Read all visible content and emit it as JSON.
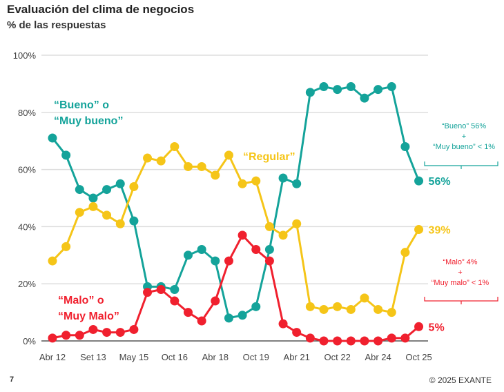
{
  "chart_data": {
    "type": "line",
    "title": "Evaluación del clima de negocios",
    "subtitle": "% de las respuestas",
    "ylim": [
      0,
      100
    ],
    "yticks": [
      "0%",
      "20%",
      "40%",
      "60%",
      "80%",
      "100%"
    ],
    "grid": true,
    "xtick_labels": [
      "Abr 12",
      "Set 13",
      "May 15",
      "Oct 16",
      "Abr 18",
      "Oct 19",
      "Abr 21",
      "Oct 22",
      "Abr 24",
      "Oct 25"
    ],
    "xtick_every": 3,
    "series": [
      {
        "name": "“Bueno” o “Muy bueno”",
        "color": "#14A39A",
        "end_label": "56%",
        "values": [
          71,
          65,
          53,
          50,
          53,
          55,
          42,
          19,
          19,
          18,
          30,
          32,
          28,
          8,
          9,
          12,
          32,
          57,
          55,
          87,
          89,
          88,
          89,
          85,
          88,
          89,
          68,
          56
        ]
      },
      {
        "name": "“Regular”",
        "color": "#F5C518",
        "end_label": "39%",
        "values": [
          28,
          33,
          45,
          47,
          44,
          41,
          54,
          64,
          63,
          68,
          61,
          61,
          58,
          65,
          55,
          56,
          40,
          37,
          41,
          12,
          11,
          12,
          11,
          15,
          11,
          10,
          31,
          39
        ]
      },
      {
        "name": "“Malo” o “Muy Malo”",
        "color": "#F0202E",
        "end_label": "5%",
        "values": [
          1,
          2,
          2,
          4,
          3,
          3,
          4,
          17,
          18,
          14,
          10,
          7,
          14,
          28,
          37,
          32,
          28,
          6,
          3,
          1,
          0,
          0,
          0,
          0,
          0,
          1,
          1,
          5
        ]
      }
    ],
    "annotations": {
      "bueno": [
        "“Bueno” 56%",
        "+",
        "“Muy bueno” < 1%"
      ],
      "malo": [
        "“Malo” 4%",
        "+",
        "“Muy malo” < 1%"
      ]
    }
  },
  "footer": {
    "page": "7",
    "copyright": "© 2025 EXANTE"
  }
}
